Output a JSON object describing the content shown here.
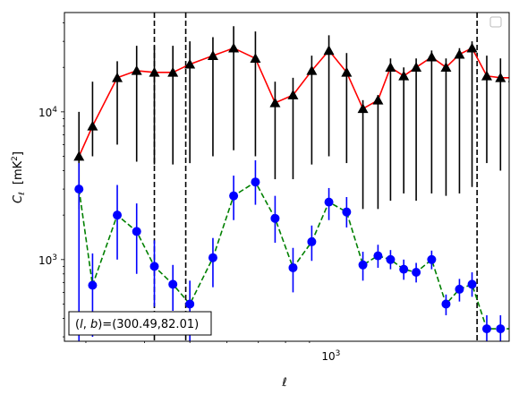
{
  "chart_data": {
    "type": "scatter",
    "xlabel": "ℓ",
    "ylabel_main": "C",
    "ylabel_sub": "ℓ",
    "ylabel_unit_base": "[mK",
    "ylabel_unit_exp": "2",
    "ylabel_unit_close": "]",
    "x_scale": "log",
    "y_scale": "log",
    "xlim": [
      270,
      2400
    ],
    "ylim": [
      280,
      47000
    ],
    "x_ticks": [
      {
        "value": 1000,
        "base": "10",
        "exp": "3"
      }
    ],
    "y_ticks": [
      {
        "value": 1000,
        "base": "10",
        "exp": "3"
      },
      {
        "value": 10000,
        "base": "10",
        "exp": "4"
      }
    ],
    "annotation": "(l, b)=(300.49,82.01)",
    "annotation_parts": {
      "open": "(",
      "l": "l",
      "comma": ", ",
      "b": "b",
      "rest": ")=(300.49,82.01)"
    },
    "legend_placement": "upper right",
    "vertical_lines_x": [
      420,
      490,
      2050
    ],
    "series": [
      {
        "marker": "triangle",
        "marker_color": "#000000",
        "line_color": "#ff0000",
        "line_style": "solid",
        "errorbar_color": "#000000",
        "x": [
          290,
          310,
          350,
          385,
          420,
          460,
          500,
          560,
          620,
          690,
          760,
          830,
          910,
          990,
          1080,
          1170,
          1260,
          1340,
          1430,
          1520,
          1640,
          1760,
          1880,
          2000,
          2150,
          2300,
          2450
        ],
        "y": [
          5000,
          8000,
          17000,
          19000,
          18500,
          18500,
          21000,
          24000,
          27000,
          23000,
          11500,
          13000,
          19000,
          26000,
          18500,
          10500,
          12000,
          20000,
          17500,
          20000,
          23500,
          20000,
          24500,
          27000,
          17500,
          17000,
          17000
        ],
        "yerr_low": [
          2200,
          5000,
          6000,
          4600,
          4400,
          4400,
          4500,
          5000,
          5500,
          5000,
          3500,
          3500,
          4400,
          5000,
          4500,
          2200,
          2200,
          2500,
          2800,
          2500,
          2800,
          2700,
          2800,
          3100,
          4500,
          4000,
          4000
        ],
        "yerr_high": [
          10000,
          16000,
          22000,
          28000,
          28000,
          28000,
          30000,
          32000,
          38000,
          35000,
          16000,
          17000,
          24000,
          33000,
          25000,
          12000,
          13000,
          23000,
          20000,
          23000,
          26000,
          23000,
          27000,
          30000,
          24000,
          23000,
          23000
        ]
      },
      {
        "marker": "circle",
        "marker_color": "#0000ff",
        "line_color": "#008000",
        "line_style": "dashed",
        "errorbar_color": "#0000ff",
        "x": [
          290,
          310,
          350,
          385,
          420,
          460,
          500,
          560,
          620,
          690,
          760,
          830,
          910,
          990,
          1080,
          1170,
          1260,
          1340,
          1430,
          1520,
          1640,
          1760,
          1880,
          2000,
          2150,
          2300,
          2450
        ],
        "y": [
          3000,
          670,
          2000,
          1550,
          900,
          680,
          500,
          1030,
          2700,
          3350,
          1900,
          880,
          1320,
          2450,
          2100,
          920,
          1060,
          1000,
          860,
          820,
          1000,
          500,
          630,
          680,
          340,
          340,
          340
        ],
        "yerr_low": [
          280,
          300,
          1000,
          800,
          480,
          450,
          280,
          650,
          1850,
          2350,
          1300,
          600,
          980,
          1850,
          1650,
          720,
          880,
          860,
          730,
          700,
          860,
          420,
          520,
          560,
          280,
          280,
          280
        ],
        "yerr_high": [
          4500,
          1100,
          3200,
          2400,
          1350,
          920,
          720,
          1400,
          3700,
          4700,
          2700,
          1200,
          1700,
          3050,
          2650,
          1130,
          1260,
          1160,
          1000,
          950,
          1150,
          580,
          740,
          820,
          420,
          420,
          420
        ]
      }
    ]
  }
}
